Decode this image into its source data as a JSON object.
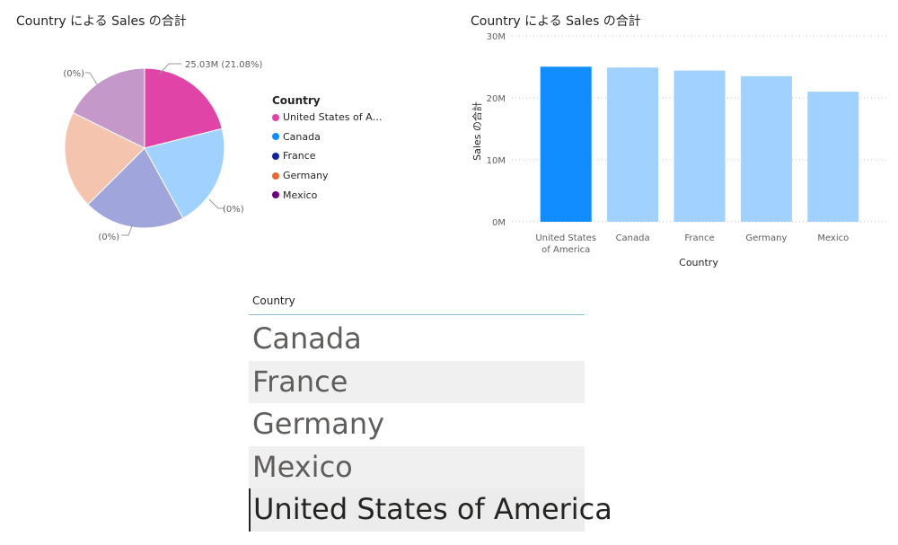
{
  "pie": {
    "title": "Country による Sales の合計",
    "legend": {
      "title": "Country",
      "items": [
        {
          "label": "United States of A…",
          "color": "#e044a7"
        },
        {
          "label": "Canada",
          "color": "#118dff"
        },
        {
          "label": "France",
          "color": "#12239e"
        },
        {
          "label": "Germany",
          "color": "#e66c37"
        },
        {
          "label": "Mexico",
          "color": "#6b007b"
        }
      ]
    },
    "labels": {
      "top": "25.03M (21.08%)",
      "right": "(0%)",
      "bottom": "(0%)",
      "left": "(0%)"
    }
  },
  "bar": {
    "title": "Country による Sales の合計",
    "xlabel": "Country",
    "ylabel": "Sales の合計",
    "ticks": [
      "0M",
      "10M",
      "20M",
      "30M"
    ],
    "categories": [
      "United States of America",
      "Canada",
      "France",
      "Germany",
      "Mexico"
    ]
  },
  "chart_data": [
    {
      "type": "pie",
      "title": "Country による Sales の合計",
      "categories": [
        "United States of America",
        "Canada",
        "France",
        "Germany",
        "Mexico"
      ],
      "values": [
        25.03,
        24.9,
        24.4,
        23.5,
        21.0
      ],
      "unit": "M",
      "highlighted": "United States of America",
      "colors": [
        "#e044a7",
        "#a0d1ff",
        "#a0a6db",
        "#f5c4af",
        "#c499ca"
      ],
      "legend_position": "right"
    },
    {
      "type": "bar",
      "title": "Country による Sales の合計",
      "xlabel": "Country",
      "ylabel": "Sales の合計",
      "categories": [
        "United States of America",
        "Canada",
        "France",
        "Germany",
        "Mexico"
      ],
      "values": [
        25.03,
        24.9,
        24.4,
        23.5,
        21.0
      ],
      "unit": "M",
      "ylim": [
        0,
        30
      ],
      "yticks": [
        0,
        10,
        20,
        30
      ],
      "grid": true,
      "colors": {
        "highlighted": "#118dff",
        "dimmed": "#a0d1ff"
      },
      "highlighted": "United States of America"
    }
  ],
  "slicer": {
    "header": "Country",
    "items": [
      "Canada",
      "France",
      "Germany",
      "Mexico",
      "United States of America"
    ]
  }
}
